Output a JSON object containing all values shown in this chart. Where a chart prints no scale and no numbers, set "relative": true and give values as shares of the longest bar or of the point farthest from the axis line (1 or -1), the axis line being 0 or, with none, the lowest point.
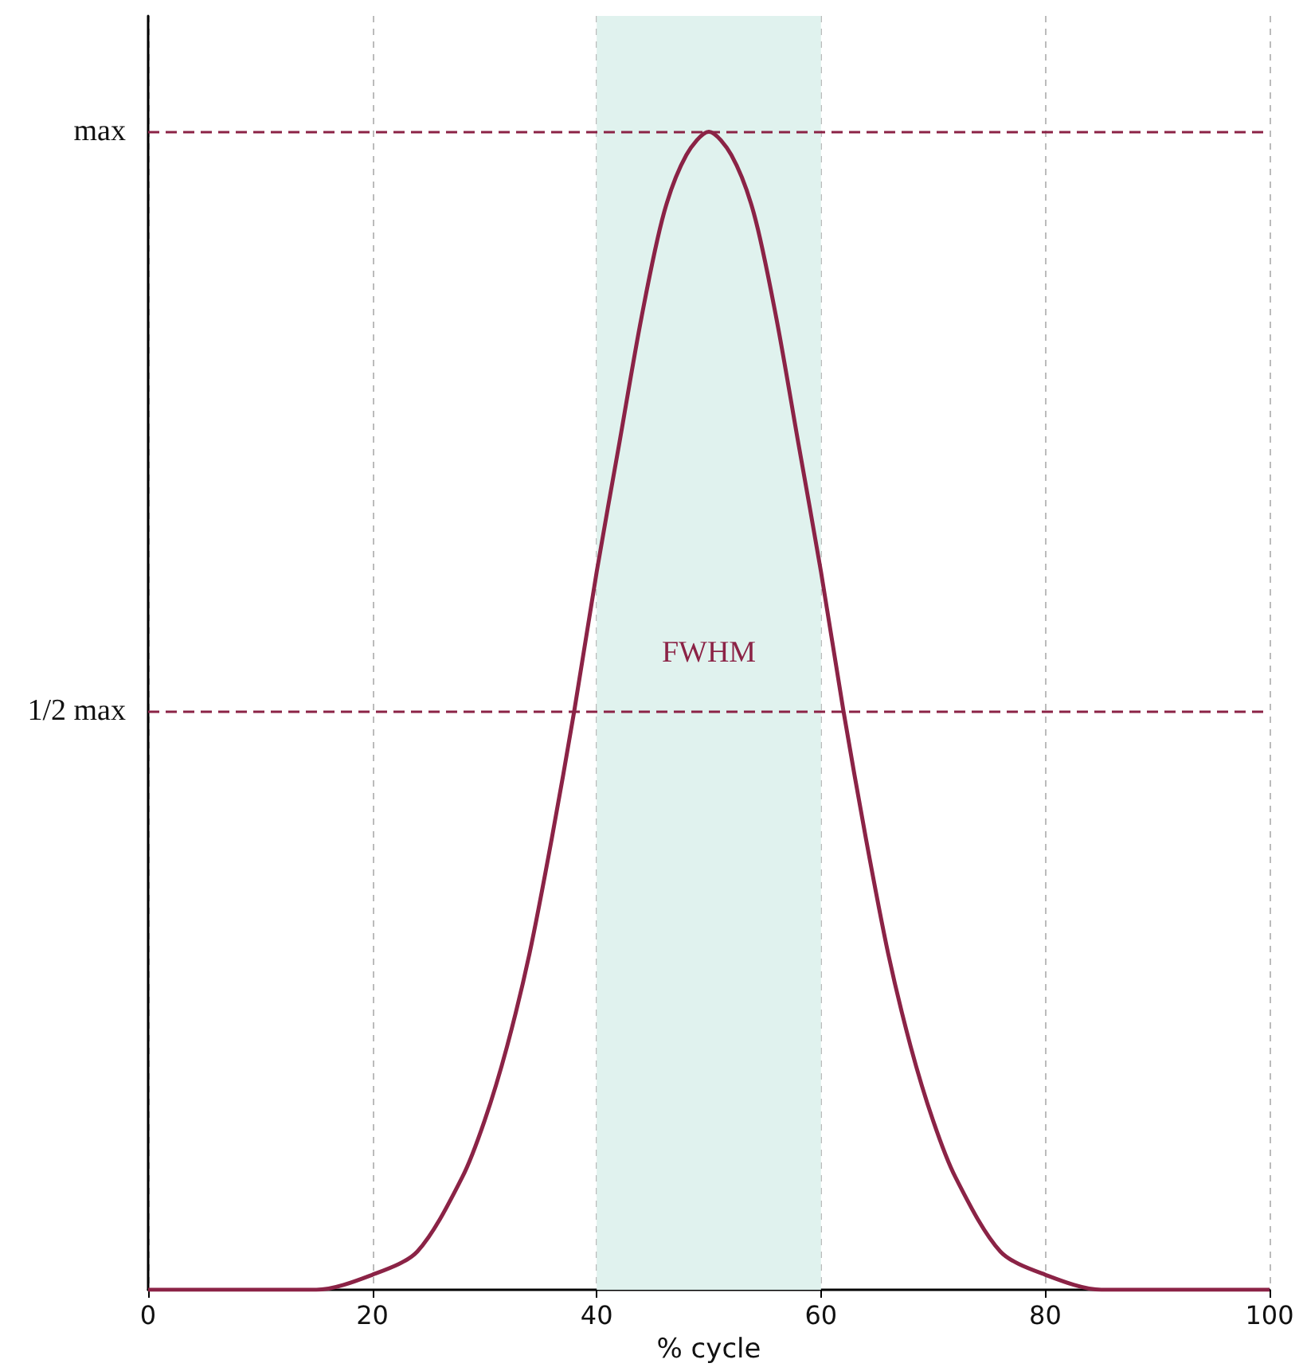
{
  "chart_data": {
    "type": "line",
    "xlabel": "% cycle",
    "x": [
      0,
      5,
      10,
      15,
      20,
      24,
      28,
      30,
      32,
      34,
      36,
      38,
      40,
      42,
      44,
      46,
      48,
      50,
      52,
      54,
      56,
      58,
      60,
      62,
      64,
      66,
      68,
      70,
      72,
      76,
      80,
      85,
      90,
      95,
      100
    ],
    "series": [
      {
        "color": "#8b2346",
        "values": [
          0,
          0,
          0,
          0,
          0.013,
          0.033,
          0.097,
          0.146,
          0.21,
          0.29,
          0.39,
          0.5,
          0.62,
          0.73,
          0.84,
          0.93,
          0.98,
          1,
          0.98,
          0.93,
          0.84,
          0.73,
          0.62,
          0.5,
          0.39,
          0.29,
          0.21,
          0.146,
          0.097,
          0.033,
          0.013,
          0,
          0,
          0,
          0
        ]
      }
    ],
    "xlim": [
      0,
      100
    ],
    "xticks": [
      0,
      20,
      40,
      60,
      80,
      100
    ],
    "relative": true,
    "ref_lines": [
      {
        "axis": "y",
        "value": 1,
        "label": "max",
        "color": "#8b2346",
        "line_style": "dashed"
      },
      {
        "axis": "y",
        "value": 0.5,
        "label": "1/2 max",
        "color": "#8b2346",
        "line_style": "dashed"
      }
    ],
    "bands": [
      {
        "axis": "x",
        "from": 40,
        "to": 60,
        "label": "FWHM",
        "color": "#e0f2ee"
      }
    ],
    "grid": "x",
    "marker": "none",
    "line_style": "solid"
  }
}
